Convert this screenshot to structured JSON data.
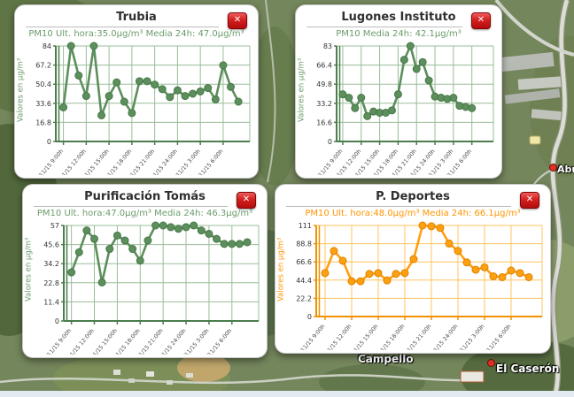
{
  "ui": {
    "close_glyph": "✕"
  },
  "themes": {
    "green": {
      "main": "#5d8f5d",
      "dark": "#467746",
      "grid": "#9abd9a",
      "axis": "#4c7d4c",
      "text": "#6b9c6b"
    },
    "orange": {
      "main": "#ffa011",
      "dark": "#dd8200",
      "grid": "#ffc45e",
      "axis": "#f29000",
      "text": "#ff9500"
    }
  },
  "map": {
    "labels": [
      {
        "text": "Campello"
      },
      {
        "text": "El Caserón"
      },
      {
        "text": "Abu"
      }
    ]
  },
  "chart_data": [
    {
      "type": "line",
      "station": "Trubia",
      "title": "Trubia",
      "subtitle": "PM10 Ult. hora:35.0µg/m³ Media 24h: 47.0µg/m³",
      "pm10_ult_hora": 35.0,
      "pm10_media_24h": 47.0,
      "ylabel": "Valores en µg/m³",
      "theme": "green",
      "ylim": [
        0,
        84
      ],
      "yticks": [
        0,
        16.8,
        33.6,
        50.4,
        67.2,
        84
      ],
      "x_tick_labels": [
        "18/11/15 9:00h",
        "18/11/15 12:00h",
        "18/11/15 15:00h",
        "18/11/15 18:00h",
        "18/11/15 21:00h",
        "18/11/15 24:00h",
        "19/11/15 3:00h",
        "19/11/15 6:00h"
      ],
      "values": [
        30,
        84,
        58,
        40,
        84,
        23,
        40,
        52,
        35,
        25,
        53,
        53,
        50,
        46,
        39,
        45,
        40,
        42,
        44,
        47,
        37,
        67,
        48,
        35
      ]
    },
    {
      "type": "line",
      "station": "Lugones Instituto",
      "title": "Lugones Instituto",
      "subtitle": "PM10 Media 24h: 42.1µg/m³",
      "pm10_media_24h": 42.1,
      "ylabel": "Valores en µg/m³",
      "theme": "green",
      "ylim": [
        0,
        83
      ],
      "yticks": [
        0,
        16.6,
        33.2,
        49.8,
        66.4,
        83
      ],
      "x_tick_labels": [
        "18/11/15 9:00h",
        "18/11/15 12:00h",
        "18/11/15 15:00h",
        "18/11/15 18:00h",
        "18/11/15 21:00h",
        "18/11/15 24:00h",
        "19/11/15 3:00h",
        "19/11/15 6:00h"
      ],
      "values": [
        41,
        38,
        29,
        38,
        22,
        26,
        25,
        25,
        27,
        41,
        71,
        83,
        63,
        69,
        53,
        39,
        38,
        37,
        38,
        31,
        30,
        29
      ]
    },
    {
      "type": "line",
      "station": "Purificación Tomás",
      "title": "Purificación Tomás",
      "subtitle": "PM10 Ult. hora:47.0µg/m³ Media 24h: 46.3µg/m³",
      "pm10_ult_hora": 47.0,
      "pm10_media_24h": 46.3,
      "ylabel": "Valores en µg/m³",
      "theme": "green",
      "ylim": [
        0,
        57
      ],
      "yticks": [
        0,
        11.4,
        22.8,
        34.2,
        45.6,
        57
      ],
      "x_tick_labels": [
        "18/11/15 9:00h",
        "18/11/15 12:00h",
        "18/11/15 15:00h",
        "18/11/15 18:00h",
        "18/11/15 21:00h",
        "18/11/15 24:00h",
        "19/11/15 3:00h",
        "19/11/15 6:00h"
      ],
      "values": [
        29,
        41,
        54,
        49,
        23,
        43,
        51,
        48,
        43,
        36,
        48,
        57,
        57,
        56,
        55,
        56,
        57,
        54,
        52,
        49,
        46,
        46,
        46,
        47
      ]
    },
    {
      "type": "line",
      "station": "P. Deportes",
      "title": "P. Deportes",
      "subtitle": "PM10 Ult. hora:48.0µg/m³ Media 24h: 66.1µg/m³",
      "pm10_ult_hora": 48.0,
      "pm10_media_24h": 66.1,
      "ylabel": "Valores en µg/m³",
      "theme": "orange",
      "ylim": [
        0,
        111
      ],
      "yticks": [
        0,
        22.2,
        44.4,
        66.6,
        88.8,
        111
      ],
      "x_tick_labels": [
        "18/11/15 9:00h",
        "18/11/15 12:00h",
        "18/11/15 15:00h",
        "18/11/15 18:00h",
        "18/11/15 21:00h",
        "18/11/15 24:00h",
        "19/11/15 3:00h",
        "19/11/15 6:00h"
      ],
      "values": [
        53,
        80,
        68,
        43,
        43,
        52,
        53,
        44,
        52,
        53,
        70,
        111,
        110,
        108,
        89,
        80,
        66,
        57,
        60,
        49,
        48,
        56,
        53,
        48
      ]
    }
  ]
}
